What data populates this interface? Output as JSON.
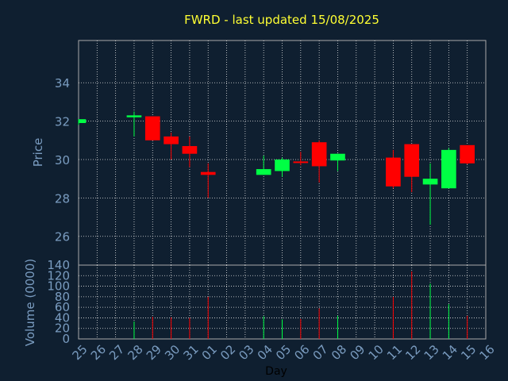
{
  "chart_data": {
    "type": "candlestick",
    "title": "FWRD - last updated 15/08/2025",
    "xlabel": "Day",
    "price_ylabel": "Price",
    "volume_ylabel": "Volume (0000)",
    "price_ylim": [
      24.5,
      36.2
    ],
    "price_yticks": [
      "26",
      "28",
      "30",
      "32",
      "34"
    ],
    "volume_ylim": [
      0,
      140
    ],
    "volume_yticks": [
      "0",
      "20",
      "40",
      "60",
      "80",
      "100",
      "120",
      "140"
    ],
    "grid": true,
    "colors": {
      "background": "#0f1f30",
      "plot_edge": "#aaaaaa",
      "grid": "#e0e0e0",
      "title": "#ffff33",
      "axis_text": "#7a9cc0",
      "xlabel": "#000000",
      "up": "#00ff44",
      "down": "#ff0000"
    },
    "days": [
      "25",
      "26",
      "27",
      "28",
      "29",
      "30",
      "31",
      "01",
      "02",
      "03",
      "04",
      "05",
      "06",
      "07",
      "08",
      "09",
      "10",
      "11",
      "12",
      "13",
      "14",
      "15",
      "16"
    ],
    "candles": [
      {
        "day": "25",
        "open": 31.9,
        "high": 32.1,
        "low": 31.8,
        "close": 32.1,
        "volume": 0
      },
      {
        "day": "28",
        "open": 32.2,
        "high": 32.5,
        "low": 31.2,
        "close": 32.3,
        "volume": 33
      },
      {
        "day": "29",
        "open": 32.25,
        "high": 32.25,
        "low": 31.0,
        "close": 31.0,
        "volume": 42
      },
      {
        "day": "30",
        "open": 31.2,
        "high": 31.4,
        "low": 30.0,
        "close": 30.8,
        "volume": 41
      },
      {
        "day": "31",
        "open": 30.7,
        "high": 31.2,
        "low": 29.6,
        "close": 30.3,
        "volume": 40
      },
      {
        "day": "01",
        "open": 29.35,
        "high": 29.8,
        "low": 28.0,
        "close": 29.2,
        "volume": 80
      },
      {
        "day": "04",
        "open": 29.2,
        "high": 30.2,
        "low": 29.2,
        "close": 29.5,
        "volume": 43
      },
      {
        "day": "05",
        "open": 29.4,
        "high": 30.1,
        "low": 29.1,
        "close": 30.0,
        "volume": 37
      },
      {
        "day": "06",
        "open": 29.9,
        "high": 30.4,
        "low": 29.7,
        "close": 29.85,
        "volume": 38
      },
      {
        "day": "07",
        "open": 30.9,
        "high": 31.0,
        "low": 28.8,
        "close": 29.65,
        "volume": 58
      },
      {
        "day": "08",
        "open": 29.95,
        "high": 30.3,
        "low": 29.4,
        "close": 30.3,
        "volume": 44
      },
      {
        "day": "11",
        "open": 30.1,
        "high": 30.5,
        "low": 28.5,
        "close": 28.6,
        "volume": 80
      },
      {
        "day": "12",
        "open": 30.8,
        "high": 30.8,
        "low": 28.3,
        "close": 29.1,
        "volume": 128
      },
      {
        "day": "13",
        "open": 28.7,
        "high": 29.8,
        "low": 26.6,
        "close": 29.0,
        "volume": 105
      },
      {
        "day": "14",
        "open": 28.5,
        "high": 30.6,
        "low": 28.5,
        "close": 30.5,
        "volume": 66
      },
      {
        "day": "15",
        "open": 30.75,
        "high": 30.75,
        "low": 29.75,
        "close": 29.8,
        "volume": 44
      }
    ]
  }
}
